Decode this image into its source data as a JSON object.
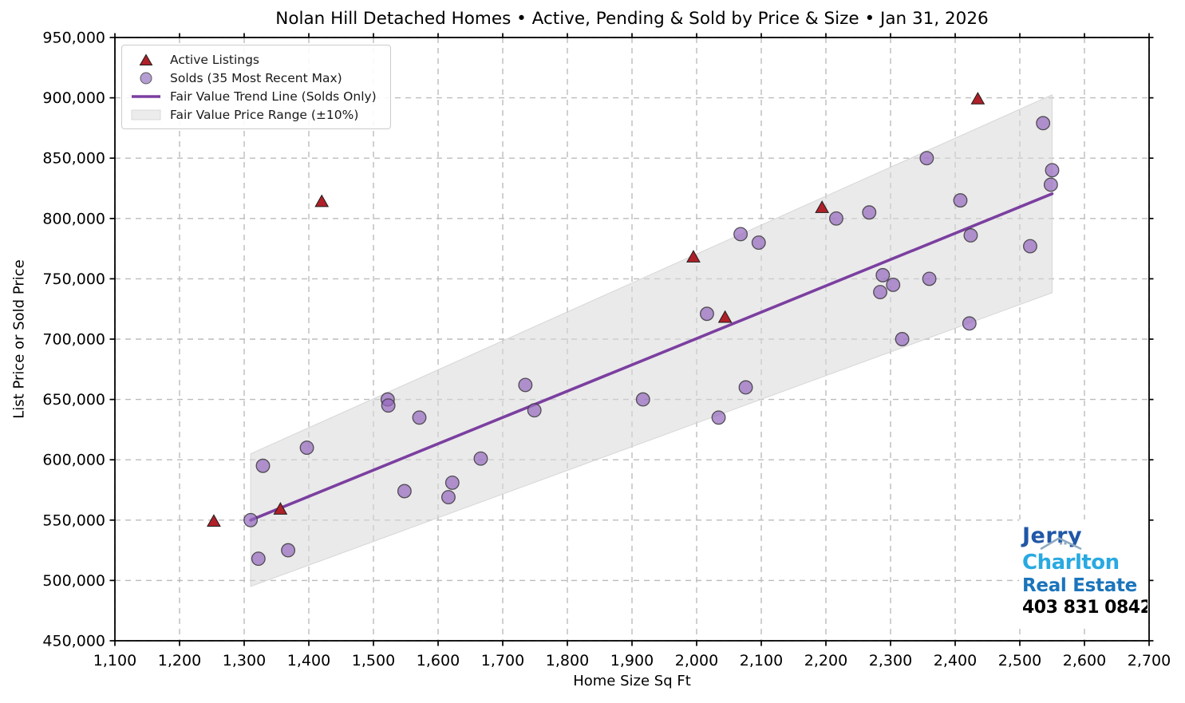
{
  "chart_data": {
    "type": "scatter",
    "title": "Nolan Hill Detached Homes • Active, Pending & Sold by Price & Size • Jan 31, 2026",
    "xlabel": "Home Size Sq Ft",
    "ylabel": "List Price or Sold Price",
    "xlim": [
      1100,
      2700
    ],
    "ylim": [
      450000,
      950000
    ],
    "xticks": [
      1100,
      1200,
      1300,
      1400,
      1500,
      1600,
      1700,
      1800,
      1900,
      2000,
      2100,
      2200,
      2300,
      2400,
      2500,
      2600,
      2700
    ],
    "yticks": [
      450000,
      500000,
      550000,
      600000,
      650000,
      700000,
      750000,
      800000,
      850000,
      900000,
      950000
    ],
    "grid": true,
    "legend_position": "upper left",
    "colors": {
      "active_fill": "#af2028",
      "active_edge": "#1c1c1c",
      "sold_fill": "#9467bd",
      "sold_edge": "#3a3a3a",
      "trend": "#7b3fa0",
      "band_fill": "#d9d9d9",
      "band_edge": "#cfcfcf",
      "grid": "#bcbcbc",
      "spine": "#000000"
    },
    "series": [
      {
        "name": "Active Listings",
        "marker": "triangle",
        "points": [
          [
            1253,
            549000
          ],
          [
            1356,
            559000
          ],
          [
            1420,
            814000
          ],
          [
            1995,
            768000
          ],
          [
            2044,
            718000
          ],
          [
            2194,
            809000
          ],
          [
            2435,
            899000
          ]
        ]
      },
      {
        "name": "Solds (35 Most Recent Max)",
        "marker": "circle",
        "points": [
          [
            1310,
            550000
          ],
          [
            1322,
            518000
          ],
          [
            1329,
            595000
          ],
          [
            1368,
            525000
          ],
          [
            1397,
            610000
          ],
          [
            1522,
            650000
          ],
          [
            1523,
            645000
          ],
          [
            1548,
            574000
          ],
          [
            1571,
            635000
          ],
          [
            1616,
            569000
          ],
          [
            1622,
            581000
          ],
          [
            1666,
            601000
          ],
          [
            1735,
            662000
          ],
          [
            1749,
            641000
          ],
          [
            1917,
            650000
          ],
          [
            2016,
            721000
          ],
          [
            2034,
            635000
          ],
          [
            2068,
            787000
          ],
          [
            2076,
            660000
          ],
          [
            2096,
            780000
          ],
          [
            2216,
            800000
          ],
          [
            2267,
            805000
          ],
          [
            2284,
            739000
          ],
          [
            2288,
            753000
          ],
          [
            2304,
            745000
          ],
          [
            2318,
            700000
          ],
          [
            2356,
            850000
          ],
          [
            2360,
            750000
          ],
          [
            2408,
            815000
          ],
          [
            2422,
            713000
          ],
          [
            2424,
            786000
          ],
          [
            2516,
            777000
          ],
          [
            2536,
            879000
          ],
          [
            2548,
            828000
          ],
          [
            2550,
            840000
          ]
        ]
      }
    ],
    "trend_line": {
      "name": "Fair Value Trend Line (Solds Only)",
      "x": [
        1310,
        2550
      ],
      "y": [
        550000,
        820500
      ]
    },
    "band": {
      "name": "Fair Value Price Range (±10%)",
      "x": [
        1310,
        2550
      ],
      "lower": [
        495000,
        738450
      ],
      "upper": [
        605000,
        902550
      ]
    },
    "legend": [
      {
        "label": "Active Listings",
        "marker": "triangle"
      },
      {
        "label": "Solds (35 Most Recent Max)",
        "marker": "circle"
      },
      {
        "label": "Fair Value Trend Line (Solds Only)",
        "marker": "line"
      },
      {
        "label": "Fair Value Price Range (±10%)",
        "marker": "patch"
      }
    ]
  },
  "logo": {
    "line1": "Jerry",
    "line2": "Charlton",
    "line3": "Real Estate",
    "phone": "403 831 0842",
    "colors": {
      "line1": "#2057a7",
      "line2": "#29a9e1",
      "line3": "#1b74bb",
      "phone": "#000000",
      "roof": "#8fa9c0"
    }
  }
}
